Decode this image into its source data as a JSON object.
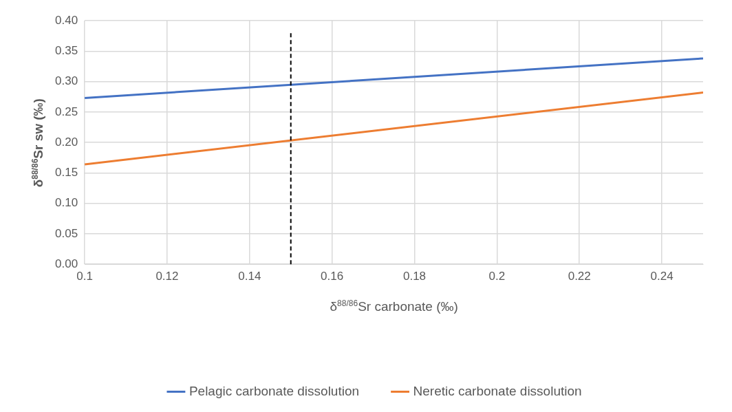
{
  "chart_data": {
    "type": "line",
    "xlabel": "δ$^{88/86}$Sr carbonate (‰)",
    "ylabel": "δ$^{88/86}$Sr sw (‰)",
    "x": [
      0.1,
      0.25
    ],
    "series": [
      {
        "name": "Pelagic carbonate dissolution",
        "color": "#4472c4",
        "values": [
          0.273,
          0.338
        ]
      },
      {
        "name": "Neretic carbonate dissolution",
        "color": "#ed7d31",
        "values": [
          0.164,
          0.282
        ]
      }
    ],
    "xlim": [
      0.1,
      0.25
    ],
    "xticks": [
      0.1,
      0.12,
      0.14,
      0.16,
      0.18,
      0.2,
      0.22,
      0.24
    ],
    "ylim": [
      0,
      0.4
    ],
    "yticks": [
      {
        "value": 0,
        "label": "0.00"
      },
      {
        "value": 0.05,
        "label": "0.05"
      },
      {
        "value": 0.1,
        "label": "0.10"
      },
      {
        "value": 0.15,
        "label": "0.15"
      },
      {
        "value": 0.2,
        "label": "0.20"
      },
      {
        "value": 0.25,
        "label": "0.25"
      },
      {
        "value": 0.3,
        "label": "0.30"
      },
      {
        "value": 0.35,
        "label": "0.35"
      },
      {
        "value": 0.4,
        "label": "0.40"
      }
    ],
    "ref_lines": [
      {
        "axis": "x",
        "value": 0.15,
        "color": "#000000",
        "line_style": "dashed"
      }
    ],
    "grid": true,
    "legend": "bottom",
    "marker": "none",
    "line_style": "solid"
  }
}
